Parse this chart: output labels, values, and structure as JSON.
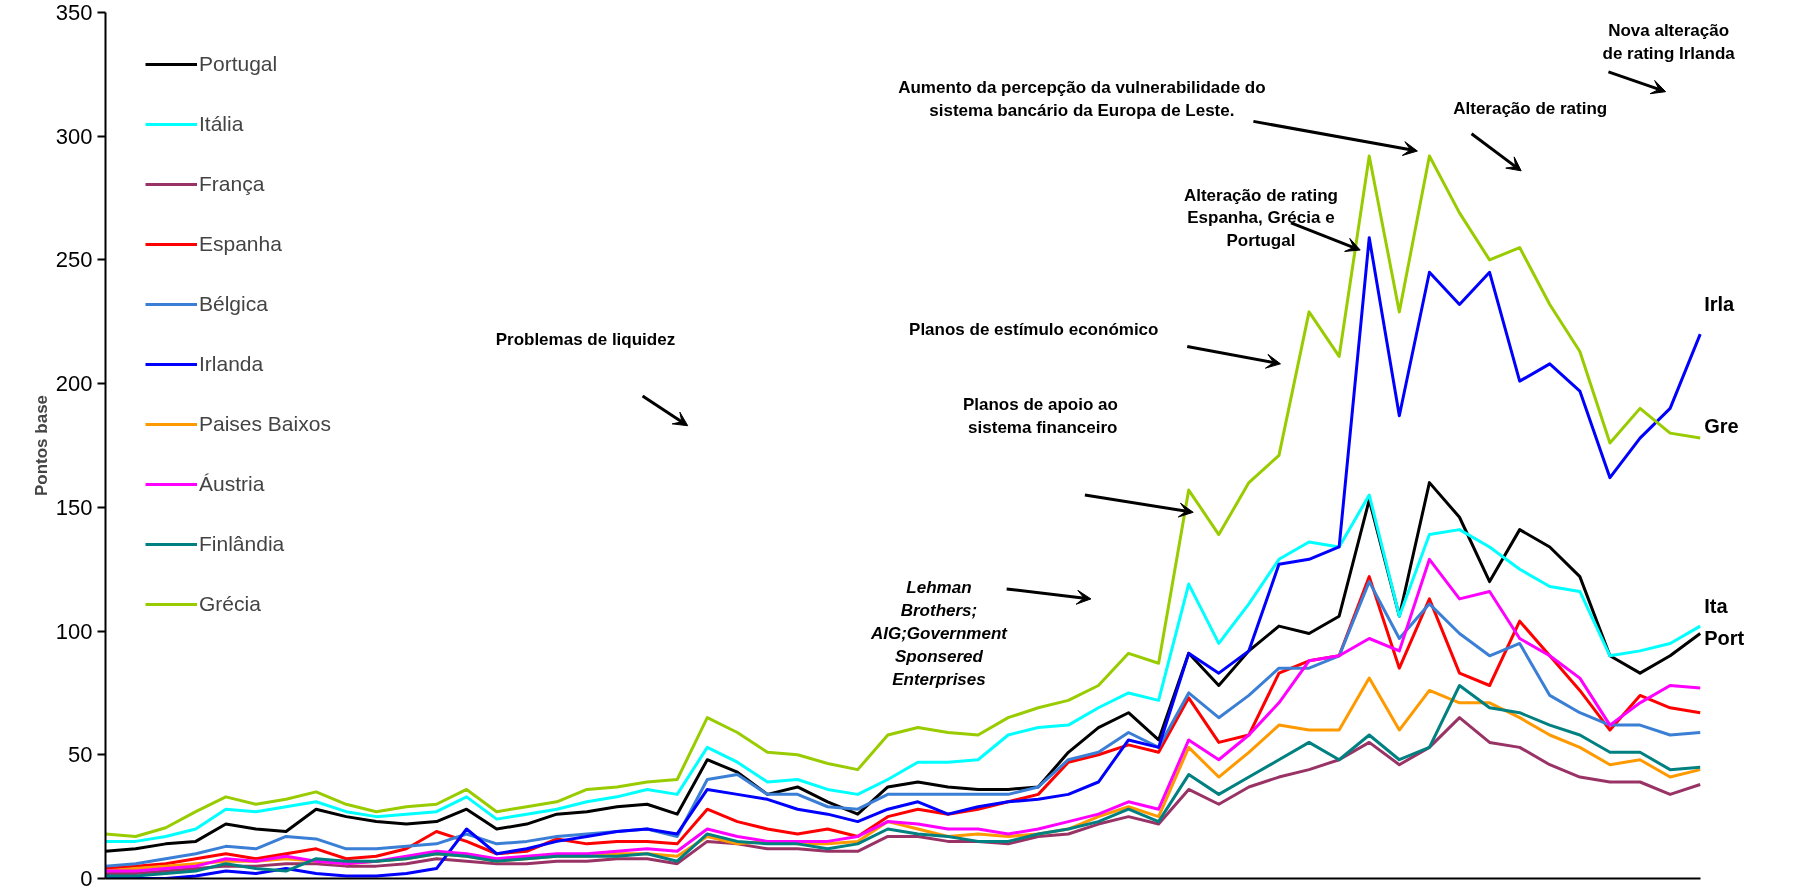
{
  "chart_data": {
    "type": "line",
    "ylabel": "Pontos base",
    "categories": [
      null,
      null,
      null,
      null,
      null,
      null,
      null,
      null,
      null,
      null,
      null,
      null,
      null,
      null,
      null,
      null,
      null,
      null,
      null,
      null,
      null,
      null,
      null,
      null,
      null,
      null,
      null,
      null,
      null,
      null,
      null,
      null,
      null,
      null,
      null,
      null,
      null,
      null,
      null,
      null,
      null,
      null,
      null,
      null,
      null,
      null,
      null,
      null,
      null,
      null,
      null,
      null,
      null,
      null
    ],
    "ylim": [
      0,
      350
    ],
    "yticks": [
      0,
      50,
      100,
      150,
      200,
      250,
      300,
      350
    ],
    "grid": false,
    "legend": "top left",
    "marker": "none",
    "line_style": "solid",
    "series": [
      {
        "name": "Portugal",
        "color": "#000000",
        "values": [
          11,
          12,
          14,
          15,
          22,
          20,
          19,
          28,
          25,
          23,
          22,
          23,
          28,
          20,
          22,
          26,
          27,
          29,
          30,
          26,
          48,
          43,
          34,
          37,
          31,
          26,
          37,
          39,
          37,
          36,
          36,
          37,
          51,
          61,
          67,
          56,
          91,
          78,
          92,
          102,
          99,
          106,
          153,
          106,
          160,
          146,
          120,
          141,
          134,
          122,
          90,
          83,
          90,
          99
        ]
      },
      {
        "name": "Itália",
        "color": "#00ffff",
        "values": [
          15,
          15,
          17,
          20,
          28,
          27,
          29,
          31,
          27,
          25,
          26,
          27,
          33,
          24,
          26,
          28,
          31,
          33,
          36,
          34,
          53,
          47,
          39,
          40,
          36,
          34,
          40,
          47,
          47,
          48,
          58,
          61,
          62,
          69,
          75,
          72,
          119,
          95,
          111,
          129,
          136,
          134,
          155,
          106,
          139,
          141,
          134,
          125,
          118,
          116,
          90,
          92,
          95,
          102
        ]
      },
      {
        "name": "França",
        "color": "#993366",
        "values": [
          2,
          2,
          3,
          4,
          5,
          5,
          6,
          6,
          5,
          5,
          6,
          8,
          7,
          6,
          6,
          7,
          7,
          8,
          8,
          6,
          15,
          14,
          12,
          12,
          11,
          11,
          17,
          17,
          15,
          15,
          14,
          17,
          18,
          22,
          25,
          22,
          36,
          30,
          37,
          41,
          44,
          48,
          55,
          46,
          53,
          65,
          55,
          53,
          46,
          41,
          39,
          39,
          34,
          38
        ]
      },
      {
        "name": "Espanha",
        "color": "#ff0000",
        "values": [
          4,
          5,
          6,
          8,
          10,
          8,
          10,
          12,
          8,
          9,
          12,
          19,
          15,
          10,
          11,
          16,
          14,
          15,
          15,
          14,
          28,
          23,
          20,
          18,
          20,
          17,
          25,
          28,
          26,
          28,
          31,
          34,
          47,
          50,
          54,
          51,
          73,
          55,
          58,
          83,
          88,
          90,
          122,
          85,
          113,
          83,
          78,
          104,
          90,
          76,
          60,
          74,
          69,
          67
        ]
      },
      {
        "name": "Bélgica",
        "color": "#3a7fd5",
        "values": [
          5,
          6,
          8,
          10,
          13,
          12,
          17,
          16,
          12,
          12,
          13,
          14,
          18,
          14,
          15,
          17,
          18,
          19,
          20,
          17,
          40,
          42,
          34,
          34,
          29,
          28,
          34,
          34,
          34,
          34,
          34,
          37,
          48,
          51,
          59,
          53,
          75,
          65,
          74,
          85,
          85,
          90,
          120,
          97,
          111,
          99,
          90,
          95,
          74,
          67,
          62,
          62,
          58,
          59
        ]
      },
      {
        "name": "Irlanda",
        "color": "#0000ff",
        "values": [
          1,
          0,
          0,
          1,
          3,
          2,
          4,
          2,
          1,
          1,
          2,
          4,
          20,
          10,
          12,
          15,
          17,
          19,
          20,
          18,
          36,
          34,
          32,
          28,
          26,
          23,
          28,
          31,
          26,
          29,
          31,
          32,
          34,
          39,
          56,
          53,
          91,
          83,
          92,
          127,
          129,
          134,
          259,
          187,
          245,
          232,
          245,
          201,
          208,
          197,
          162,
          178,
          190,
          220
        ]
      },
      {
        "name": "Paises Baixos",
        "color": "#ff9900",
        "values": [
          3,
          4,
          5,
          6,
          7,
          7,
          8,
          7,
          6,
          7,
          8,
          10,
          9,
          7,
          8,
          9,
          9,
          10,
          10,
          9,
          17,
          14,
          15,
          14,
          14,
          15,
          23,
          20,
          17,
          18,
          17,
          18,
          20,
          25,
          29,
          25,
          53,
          41,
          51,
          62,
          60,
          60,
          81,
          60,
          76,
          71,
          71,
          65,
          58,
          53,
          46,
          48,
          41,
          44
        ]
      },
      {
        "name": "Áustria",
        "color": "#ff00ff",
        "values": [
          3,
          3,
          4,
          5,
          8,
          7,
          9,
          7,
          6,
          7,
          9,
          11,
          10,
          8,
          9,
          10,
          10,
          11,
          12,
          11,
          20,
          17,
          15,
          15,
          15,
          17,
          23,
          22,
          20,
          20,
          18,
          20,
          23,
          26,
          31,
          28,
          56,
          48,
          58,
          71,
          88,
          90,
          97,
          92,
          129,
          113,
          116,
          97,
          90,
          81,
          62,
          71,
          78,
          77
        ]
      },
      {
        "name": "Finlândia",
        "color": "#008080",
        "values": [
          1,
          1,
          2,
          3,
          6,
          4,
          3,
          8,
          7,
          7,
          8,
          10,
          9,
          7,
          8,
          9,
          9,
          9,
          10,
          7,
          18,
          15,
          14,
          14,
          12,
          14,
          20,
          18,
          17,
          15,
          15,
          18,
          20,
          23,
          28,
          23,
          42,
          34,
          41,
          48,
          55,
          48,
          58,
          48,
          53,
          78,
          69,
          67,
          62,
          58,
          51,
          51,
          44,
          45
        ]
      },
      {
        "name": "Grécia",
        "color": "#99cc00",
        "values": [
          18,
          17,
          20.5,
          27,
          33,
          30,
          32,
          35,
          30,
          27,
          29,
          30,
          36,
          27,
          29,
          31,
          36,
          37,
          39,
          40,
          65,
          59,
          51,
          50,
          46.5,
          44,
          58,
          61,
          59,
          58,
          65,
          69,
          72,
          78,
          91,
          87,
          157,
          139,
          160,
          171,
          229,
          211,
          292,
          229,
          292,
          269,
          250,
          255,
          232,
          213,
          176,
          190,
          180,
          178
        ]
      }
    ],
    "annotations": [
      "Problemas de liquidez",
      "Lehman\nBrothers;\nAIG;Government\nSponsered\nEnterprises",
      "Planos de  apoio ao\nsistema financeiro",
      "Planos de estímulo económico",
      "Alteração de rating\nEspanha, Grécia e\nPortugal",
      "Aumento da percepção da vulnerabilidade do\nsistema bancário da Europa de Leste.",
      "Alteração de rating",
      "Nova alteração\nde rating Irlanda",
      "Irla",
      "Gre",
      "Ita",
      "Port"
    ]
  }
}
